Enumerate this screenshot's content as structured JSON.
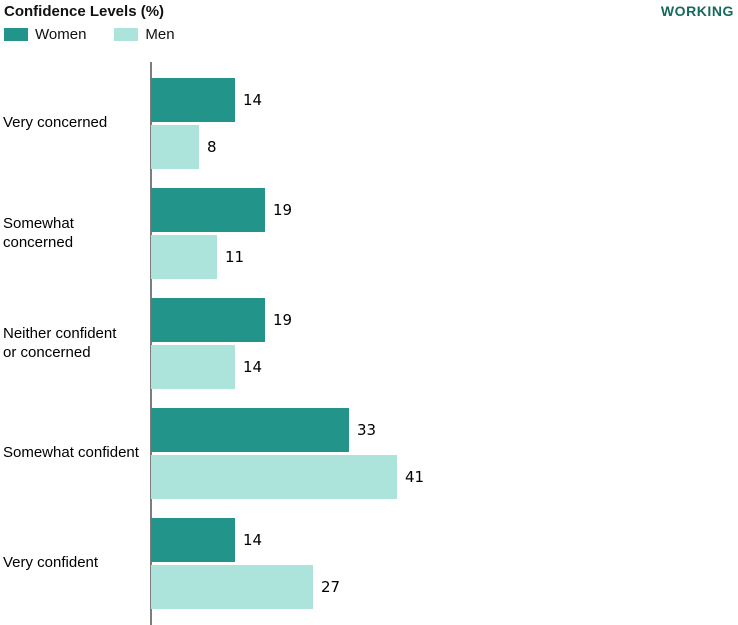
{
  "header": {
    "title": "Confidence Levels (%)",
    "badge": "WORKING",
    "badge_color": "#17685f"
  },
  "legend": {
    "items": [
      {
        "label": "Women"
      },
      {
        "label": "Men"
      }
    ]
  },
  "chart_data": {
    "type": "bar",
    "orientation": "horizontal",
    "title": "Confidence Levels (%)",
    "xlabel": "",
    "ylabel": "",
    "xlim": [
      0,
      45
    ],
    "grid": false,
    "legend_position": "top-left",
    "value_labels_shown": true,
    "categories": [
      "Very concerned",
      "Somewhat concerned",
      "Neither confident\nor concerned",
      "Somewhat confident",
      "Very confident"
    ],
    "series": [
      {
        "name": "Women",
        "color": "#22948a",
        "values": [
          14,
          19,
          19,
          33,
          14
        ]
      },
      {
        "name": "Men",
        "color": "#ace4dc",
        "values": [
          8,
          11,
          14,
          41,
          27
        ]
      }
    ],
    "axis_color": "#7d7d7d"
  }
}
